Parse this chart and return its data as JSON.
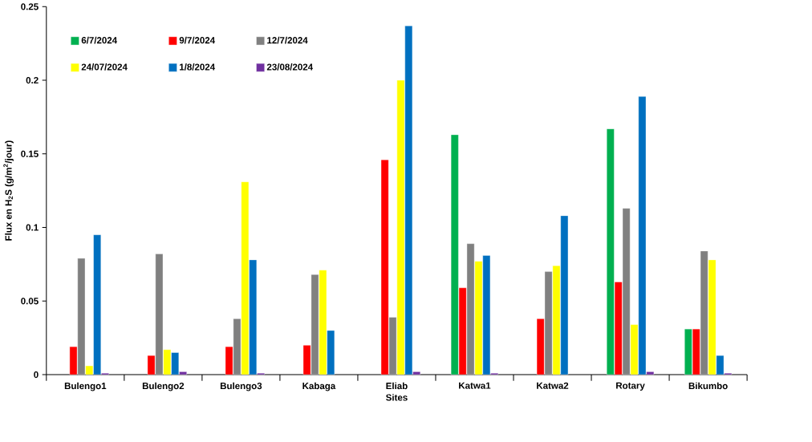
{
  "chart_data": {
    "type": "bar",
    "xlabel": "Sites",
    "ylabel": "Flux en H$_{2}$S (g/m$^{2}$/jour)",
    "categories": [
      "Bulengo1",
      "Bulengo2",
      "Bulengo3",
      "Kabaga",
      "Eliab",
      "Katwa1",
      "Katwa2",
      "Rotary",
      "Bikumbo"
    ],
    "series": [
      {
        "name": "6/7/2024",
        "color": "#00b050",
        "values": [
          null,
          null,
          null,
          null,
          null,
          0.163,
          null,
          0.167,
          0.031
        ]
      },
      {
        "name": "9/7/2024",
        "color": "#ff0000",
        "values": [
          0.019,
          0.013,
          0.019,
          0.02,
          0.146,
          0.059,
          0.038,
          0.063,
          0.031
        ]
      },
      {
        "name": "12/7/2024",
        "color": "#808080",
        "values": [
          0.079,
          0.082,
          0.038,
          0.068,
          0.039,
          0.089,
          0.07,
          0.113,
          0.084
        ]
      },
      {
        "name": "24/07/2024",
        "color": "#ffff00",
        "values": [
          0.006,
          0.017,
          0.131,
          0.071,
          0.2,
          0.077,
          0.074,
          0.034,
          0.078
        ]
      },
      {
        "name": "1/8/2024",
        "color": "#0070c0",
        "values": [
          0.095,
          0.015,
          0.078,
          0.03,
          0.237,
          0.081,
          0.108,
          0.189,
          0.013
        ]
      },
      {
        "name": "23/08/2024",
        "color": "#7030a0",
        "values": [
          0.001,
          0.002,
          0.001,
          null,
          0.002,
          0.001,
          null,
          0.002,
          0.001
        ]
      }
    ],
    "ylim": [
      0,
      0.25
    ],
    "yticks": [
      0,
      0.05,
      0.1,
      0.15,
      0.2,
      0.25
    ],
    "grid": false,
    "legend": "top left"
  }
}
